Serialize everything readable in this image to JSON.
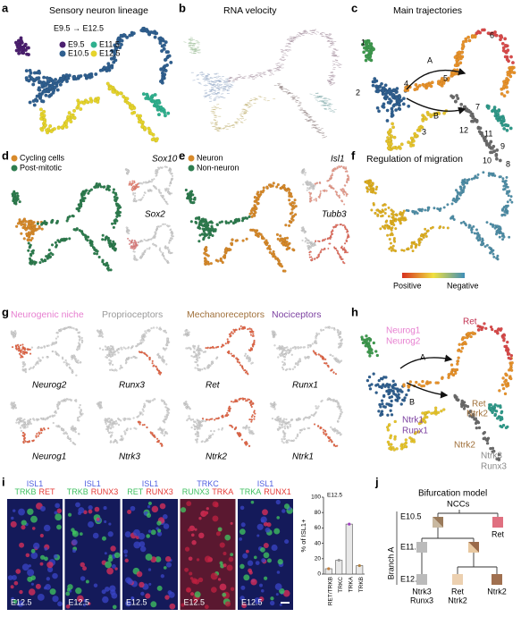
{
  "panels": {
    "a": {
      "letter": "a",
      "title": "Sensory neuron lineage",
      "subtitle": "E9.5 → E12.5",
      "legend": [
        {
          "label": "E9.5",
          "color": "#4b1f6f"
        },
        {
          "label": "E11.5",
          "color": "#2fb08e"
        },
        {
          "label": "E10.5",
          "color": "#2f5f8f"
        },
        {
          "label": "E12.5",
          "color": "#e6d42c"
        }
      ]
    },
    "b": {
      "letter": "b",
      "title": "RNA velocity"
    },
    "c": {
      "letter": "c",
      "title": "Main trajectories",
      "labels": [
        "1",
        "2",
        "3",
        "4",
        "5",
        "6",
        "7",
        "8",
        "9",
        "10",
        "11",
        "12"
      ],
      "branches": [
        "A",
        "B"
      ]
    },
    "d": {
      "letter": "d",
      "legend": [
        {
          "label": "Cycling cells",
          "color": "#d88a2a"
        },
        {
          "label": "Post-mitotic",
          "color": "#2e7d4f"
        }
      ],
      "genes": [
        "Sox10",
        "Sox2"
      ]
    },
    "e": {
      "letter": "e",
      "legend": [
        {
          "label": "Neuron",
          "color": "#d88a2a"
        },
        {
          "label": "Non-neuron",
          "color": "#2e7d4f"
        }
      ],
      "genes": [
        "Isl1",
        "Tubb3"
      ]
    },
    "f": {
      "letter": "f",
      "title": "Regulation of migration",
      "scale": [
        "Positive",
        "Negative"
      ]
    },
    "g": {
      "letter": "g",
      "groups": [
        {
          "label": "Neurogenic niche",
          "color": "#e77fd0"
        },
        {
          "label": "Proprioceptors",
          "color": "#9a9a9a"
        },
        {
          "label": "Mechanoreceptors",
          "color": "#a0703a"
        },
        {
          "label": "Nociceptors",
          "color": "#7b3fa0"
        }
      ],
      "genes": [
        "Neurog2",
        "Runx3",
        "Ret",
        "Runx1",
        "Neurog1",
        "Ntrk3",
        "Ntrk2",
        "Ntrk1"
      ]
    },
    "h": {
      "letter": "h",
      "niche": [
        "Neurog1",
        "Neurog2"
      ],
      "ret": "Ret",
      "branches": [
        "A",
        "B"
      ],
      "noci": [
        "Ntrk1",
        "Runx1"
      ],
      "mech": [
        "Ret",
        "Ntrk2"
      ],
      "mech2": "Ntrk2",
      "prop": [
        "Ntrk3",
        "Runx3"
      ]
    },
    "i": {
      "letter": "i",
      "tiles": [
        {
          "top": [
            {
              "text": "ISL1",
              "color": "#5060e0"
            }
          ],
          "bottom": [
            {
              "text": "TRKB",
              "color": "#3fc060"
            },
            {
              "text": "RET",
              "color": "#e53935"
            }
          ],
          "stage": "E12.5"
        },
        {
          "top": [
            {
              "text": "ISL1",
              "color": "#5060e0"
            }
          ],
          "bottom": [
            {
              "text": "TRKB",
              "color": "#3fc060"
            },
            {
              "text": "RUNX3",
              "color": "#e53935"
            }
          ],
          "stage": "E12.5"
        },
        {
          "top": [
            {
              "text": "ISL1",
              "color": "#5060e0"
            }
          ],
          "bottom": [
            {
              "text": "RET",
              "color": "#3fc060"
            },
            {
              "text": "RUNX3",
              "color": "#e53935"
            }
          ],
          "stage": "E12.5"
        },
        {
          "top": [
            {
              "text": "TRKC",
              "color": "#5060e0"
            }
          ],
          "bottom": [
            {
              "text": "RUNX3",
              "color": "#3fc060"
            },
            {
              "text": "TRKA",
              "color": "#e53935"
            }
          ],
          "stage": "E12.5"
        },
        {
          "top": [
            {
              "text": "ISL1",
              "color": "#5060e0"
            }
          ],
          "bottom": [
            {
              "text": "TRKA",
              "color": "#3fc060"
            },
            {
              "text": "RUNX1",
              "color": "#e53935"
            }
          ],
          "stage": "E12.5"
        }
      ]
    },
    "j": {
      "letter": "j",
      "title": "Bifurcation model",
      "root": "NCCs",
      "stages": [
        "E10.5",
        "E11.5",
        "E12.5"
      ],
      "branch": "Branch A",
      "ret": "Ret",
      "leaves": [
        [
          "Ntrk3",
          "Runx3"
        ],
        [
          "Ret",
          "Ntrk2"
        ],
        [
          "Ntrk2"
        ]
      ]
    }
  },
  "chart_data": {
    "type": "bar",
    "title": "E12.5",
    "y_label": "% of ISL1+",
    "categories": [
      "RET/TRKB",
      "TRKC",
      "TRKA",
      "TRKB"
    ],
    "values": [
      7,
      18,
      65,
      11
    ],
    "colors": [
      "#c08040",
      "#9a9a9a",
      "#a040c0",
      "#b08040"
    ],
    "ylim": [
      0,
      100
    ],
    "yticks": [
      0,
      20,
      40,
      60,
      80,
      100
    ]
  }
}
